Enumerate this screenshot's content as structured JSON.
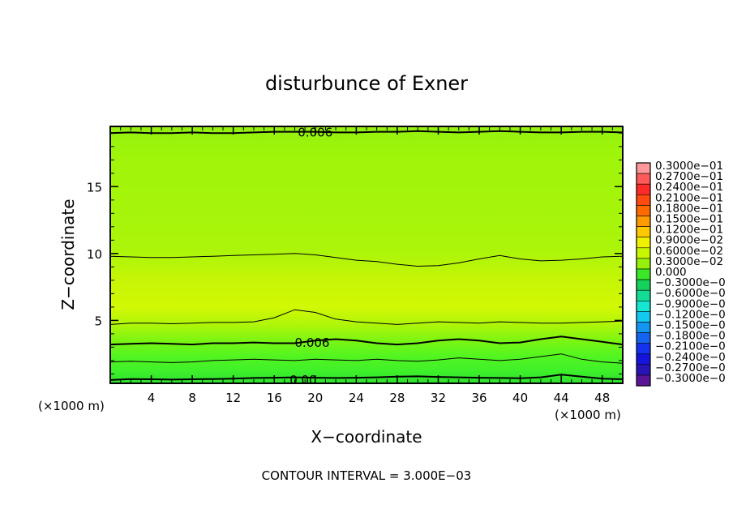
{
  "chart_data": {
    "type": "contour",
    "title": "disturbunce of Exner",
    "xlabel": "X−coordinate",
    "ylabel": "Z−coordinate",
    "x_unit_left": "(×1000 m)",
    "x_unit_right": "(×1000 m)",
    "xlim": [
      0,
      50
    ],
    "ylim": [
      0.3,
      19.5
    ],
    "x_ticks": [
      4,
      8,
      12,
      16,
      20,
      24,
      28,
      32,
      36,
      40,
      44,
      48
    ],
    "y_ticks": [
      5,
      10,
      15
    ],
    "footer": "CONTOUR INTERVAL = 3.000E−03",
    "contour_labels": [
      {
        "text": "0.006",
        "x": 18.3,
        "z": 19.1
      },
      {
        "text": "0.006",
        "x": 18.0,
        "z": 3.4
      },
      {
        "text": "0.00",
        "x": 17.5,
        "z": 0.6
      }
    ],
    "contour_lines": [
      {
        "z": [
          0.55,
          0.62,
          0.6,
          0.58,
          0.6,
          0.62,
          0.65,
          0.7,
          0.72,
          0.75,
          0.72,
          0.7,
          0.72,
          0.75,
          0.8,
          0.82,
          0.78,
          0.75,
          0.72,
          0.7,
          0.68,
          0.75,
          0.95,
          0.8,
          0.65,
          0.6
        ],
        "width": 2
      },
      {
        "z": [
          1.9,
          1.95,
          1.9,
          1.85,
          1.9,
          2.0,
          2.05,
          2.1,
          2.05,
          2.0,
          2.1,
          2.05,
          2.0,
          2.1,
          2.0,
          1.95,
          2.05,
          2.2,
          2.1,
          2.0,
          2.1,
          2.3,
          2.5,
          2.1,
          1.9,
          1.8
        ],
        "width": 1
      },
      {
        "z": [
          3.2,
          3.25,
          3.3,
          3.25,
          3.2,
          3.3,
          3.3,
          3.35,
          3.3,
          3.3,
          3.5,
          3.6,
          3.5,
          3.3,
          3.2,
          3.3,
          3.5,
          3.6,
          3.5,
          3.3,
          3.35,
          3.6,
          3.8,
          3.6,
          3.4,
          3.2
        ],
        "width": 2
      },
      {
        "z": [
          4.7,
          4.8,
          4.8,
          4.75,
          4.8,
          4.85,
          4.85,
          4.9,
          5.2,
          5.8,
          5.6,
          5.1,
          4.9,
          4.8,
          4.7,
          4.8,
          4.9,
          4.85,
          4.8,
          4.9,
          4.85,
          4.8,
          4.8,
          4.85,
          4.9,
          4.95
        ],
        "width": 1
      },
      {
        "z": [
          9.8,
          9.75,
          9.7,
          9.7,
          9.75,
          9.8,
          9.85,
          9.9,
          9.95,
          10.0,
          9.9,
          9.7,
          9.5,
          9.4,
          9.2,
          9.05,
          9.1,
          9.3,
          9.6,
          9.85,
          9.6,
          9.45,
          9.5,
          9.6,
          9.75,
          9.8
        ],
        "width": 1
      },
      {
        "z": [
          19.0,
          19.05,
          19.0,
          19.0,
          19.05,
          19.0,
          19.0,
          19.05,
          19.1,
          19.1,
          19.1,
          19.05,
          19.05,
          19.1,
          19.1,
          19.15,
          19.1,
          19.05,
          19.1,
          19.15,
          19.1,
          19.05,
          19.05,
          19.1,
          19.1,
          19.05
        ],
        "width": 2
      }
    ],
    "field_bands": [
      {
        "z": 0.3,
        "color": "#2ee02e"
      },
      {
        "z": 1.2,
        "color": "#3ef02a"
      },
      {
        "z": 2.4,
        "color": "#55f520"
      },
      {
        "z": 3.5,
        "color": "#7cf512"
      },
      {
        "z": 4.7,
        "color": "#b0f508"
      },
      {
        "z": 6.0,
        "color": "#d2f805"
      },
      {
        "z": 8.2,
        "color": "#c4f505"
      },
      {
        "z": 10.0,
        "color": "#adf50a"
      },
      {
        "z": 12.5,
        "color": "#a6f50a"
      },
      {
        "z": 17.5,
        "color": "#9ff50a"
      },
      {
        "z": 19.5,
        "color": "#94f00e"
      }
    ],
    "colorbar": {
      "levels": [
        {
          "label": "0.3000e−01",
          "color": "#ff9999"
        },
        {
          "label": "0.2700e−01",
          "color": "#ff5a5a"
        },
        {
          "label": "0.2400e−01",
          "color": "#ff2a2a"
        },
        {
          "label": "0.2100e−01",
          "color": "#ff4a10"
        },
        {
          "label": "0.1800e−01",
          "color": "#ff6a00"
        },
        {
          "label": "0.1500e−01",
          "color": "#ff9a00"
        },
        {
          "label": "0.1200e−01",
          "color": "#ffc800"
        },
        {
          "label": "0.9000e−02",
          "color": "#f0f000"
        },
        {
          "label": "0.6000e−02",
          "color": "#c8f500"
        },
        {
          "label": "0.3000e−02",
          "color": "#96f00a"
        },
        {
          "label": "0.000",
          "color": "#3ce628"
        },
        {
          "label": "−0.3000e−0",
          "color": "#14d25a"
        },
        {
          "label": "−0.6000e−0",
          "color": "#14dc96"
        },
        {
          "label": "−0.9000e−0",
          "color": "#14e6d2"
        },
        {
          "label": "−0.1200e−0",
          "color": "#14c8f0"
        },
        {
          "label": "−0.1500e−0",
          "color": "#1496f0"
        },
        {
          "label": "−0.1800e−0",
          "color": "#1464f0"
        },
        {
          "label": "−0.2100e−0",
          "color": "#1432f0"
        },
        {
          "label": "−0.2400e−0",
          "color": "#1414dc"
        },
        {
          "label": "−0.2700e−0",
          "color": "#2814b4"
        },
        {
          "label": "−0.3000e−0",
          "color": "#5a1496"
        }
      ]
    }
  }
}
